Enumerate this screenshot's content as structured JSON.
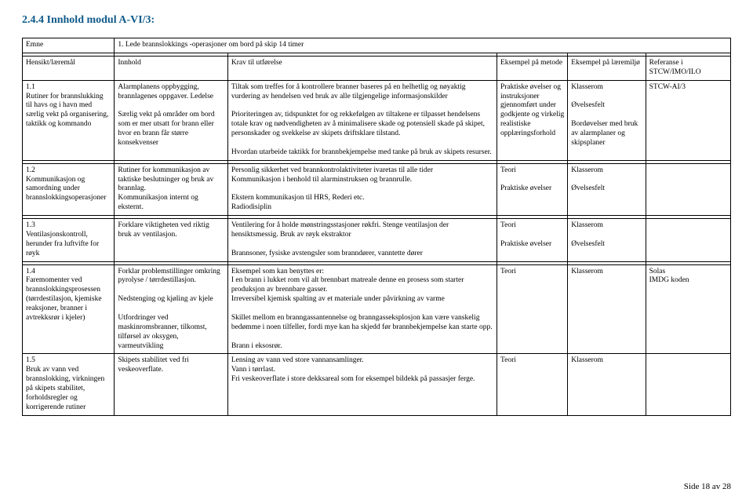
{
  "section_title": "2.4.4  Innhold modul A-VI/3:",
  "headers": {
    "emne": "Emne",
    "emne_sub": "1. Lede brannslokkings -operasjoner om bord på skip 14 timer",
    "hensikt": "Hensikt/læremål",
    "innhold": "Innhold",
    "krav": "Krav til utførelse",
    "eks_metode": "Eksempel på metode",
    "eks_miljo": "Eksempel på læremiljø",
    "referanse": "Referanse i STCW/IMO/ILO"
  },
  "rows": [
    {
      "hensikt": "1.1\nRutiner for brannslukking til havs og i havn med særlig vekt på organisering, taktikk og kommando",
      "innhold": "Alarmplanens oppbygging, brannlagenes oppgaver. Ledelse\n\nSærlig vekt på områder om bord som er mer utsatt for brann eller hvor en brann får større konsekvenser",
      "krav": "Tiltak som treffes for å kontrollere branner baseres på en helhetlig og nøyaktig vurdering av hendelsen ved bruk av alle tilgjengelige informasjonskilder\n\nPrioriteringen av, tidspunktet for og rekkefølgen av tiltakene er tilpasset hendelsens totale krav og nødvendigheten av å minimalisere skade og potensiell skade på skipet, personskader og svekkelse av skipets driftsklare tilstand.\n\nHvordan utarbeide taktikk for brannbekjempelse med tanke på bruk av skipets resurser.",
      "eks_metode": "Praktiske øvelser og instruksjoner gjennomført under godkjente og virkelig realistiske opplæringsforhold",
      "eks_miljo": "Klasserom\n\nØvelsesfelt\n\nBordøvelser med bruk av alarmplaner og skipsplaner",
      "referanse": "STCW-AI/3"
    },
    {
      "hensikt": "1.2\nKommunikasjon og samordning under brannslokkingsoperasjoner",
      "innhold": "Rutiner for kommunikasjon av taktiske beslutninger og bruk av brannlag.\nKommunikasjon internt og eksternt.",
      "krav": "Personlig sikkerhet ved brannkontrolaktiviteter ivaretas til alle tider\nKommunikasjon i henhold til alarminstruksen og brannrulle.\n\nEkstern kommunikasjon til HRS, Rederi etc.\nRadiodisiplin",
      "eks_metode": "Teori\n\nPraktiske øvelser",
      "eks_miljo": "Klasserom\n\nØvelsesfelt",
      "referanse": ""
    },
    {
      "hensikt": "1.3\nVentilasjonskontroll, herunder fra luftvifte for røyk",
      "innhold": "Forklare viktigheten ved riktig bruk av ventilasjon.",
      "krav": "Ventilering for å holde mønstringsstasjoner røkfri. Stenge ventilasjon der hensiktsmessig. Bruk av røyk ekstraktor\n\nBrannsoner, fysiske avstengsler som branndører, vanntette dører",
      "eks_metode": "Teori\n\nPraktiske øvelser",
      "eks_miljo": "Klasserom\n\nØvelsesfelt",
      "referanse": ""
    },
    {
      "hensikt": "1.4\nFaremomenter ved brannslokkingsprosessen (tørrdestilasjon, kjemiske reaksjoner, branner i avtrekksrør i kjeler)",
      "innhold": "Forklar problemstillinger omkring pyrolyse / tørrdestillasjon.\n\nNedstenging og kjøling av kjele\n\nUtfordringer ved maskinromsbranner, tilkomst, tilførsel av oksygen, varmeutvikling",
      "krav": "Eksempel som kan benyttes er:\nI en brann i lukket rom vil alt brennbart matreale denne en prosess som starter produksjon av brennbare gasser.\nIrreversibel kjemisk spalting av et materiale under påvirkning av varme\n\nSkillet mellom en branngassantennelse og branngasseksplosjon kan være vanskelig bedømme i noen tilfeller, fordi mye kan ha skjedd før brannbekjempelse kan starte opp.\n\nBrann i eksosrør.",
      "eks_metode": "Teori",
      "eks_miljo": "Klasserom",
      "referanse": "Solas\nIMDG koden"
    },
    {
      "hensikt": "1.5\nBruk av vann ved brannslokking, virkningen på skipets stabilitet, forholdsregler og korrigerende rutiner",
      "innhold": "Skipets stabilitet ved fri veskeoverflate.",
      "krav": "Lensing av vann ved store vannansamlinger.\nVann i tørrlast.\nFri veskeoverflate i store dekksareal som for eksempel bildekk på passasjer ferge.",
      "eks_metode": "Teori",
      "eks_miljo": "Klasserom",
      "referanse": ""
    }
  ],
  "page_number": "Side 18 av 28"
}
